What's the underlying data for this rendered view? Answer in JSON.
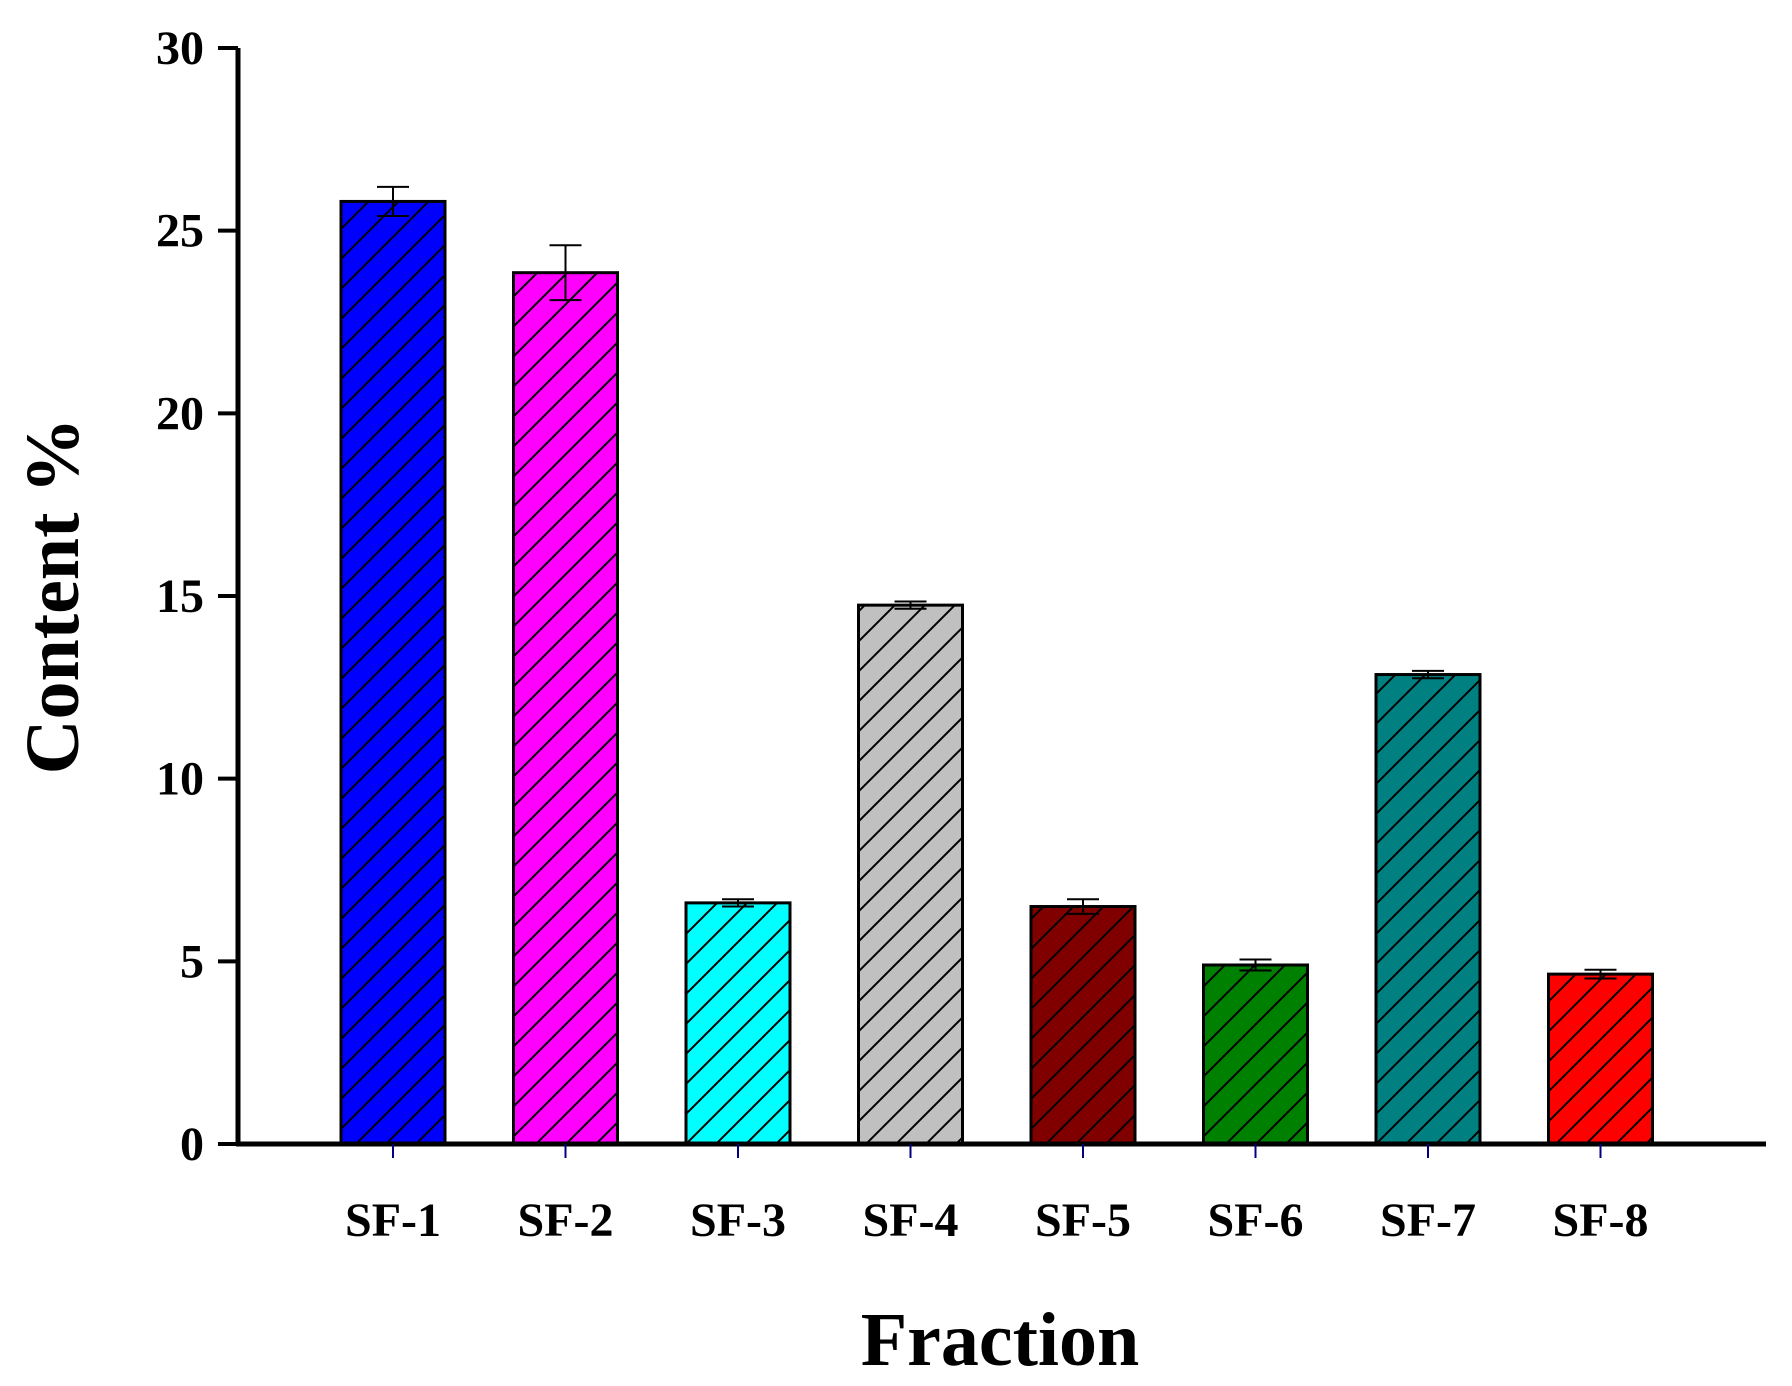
{
  "chart_data": {
    "type": "bar",
    "xlabel": "Fraction",
    "ylabel": "Content %",
    "ylim": [
      0,
      30
    ],
    "yticks": [
      0,
      5,
      10,
      15,
      20,
      25,
      30
    ],
    "grid": false,
    "hatch": "diagonal",
    "categories": [
      "SF-1",
      "SF-2",
      "SF-3",
      "SF-4",
      "SF-5",
      "SF-6",
      "SF-7",
      "SF-8"
    ],
    "values": [
      25.8,
      23.85,
      6.6,
      14.75,
      6.5,
      4.9,
      12.85,
      4.65
    ],
    "errors": [
      0.4,
      0.75,
      0.1,
      0.1,
      0.2,
      0.15,
      0.1,
      0.12
    ],
    "colors": [
      "#0000ff",
      "#ff00ff",
      "#00ffff",
      "#c0c0c0",
      "#800000",
      "#008000",
      "#008080",
      "#ff0000"
    ]
  }
}
